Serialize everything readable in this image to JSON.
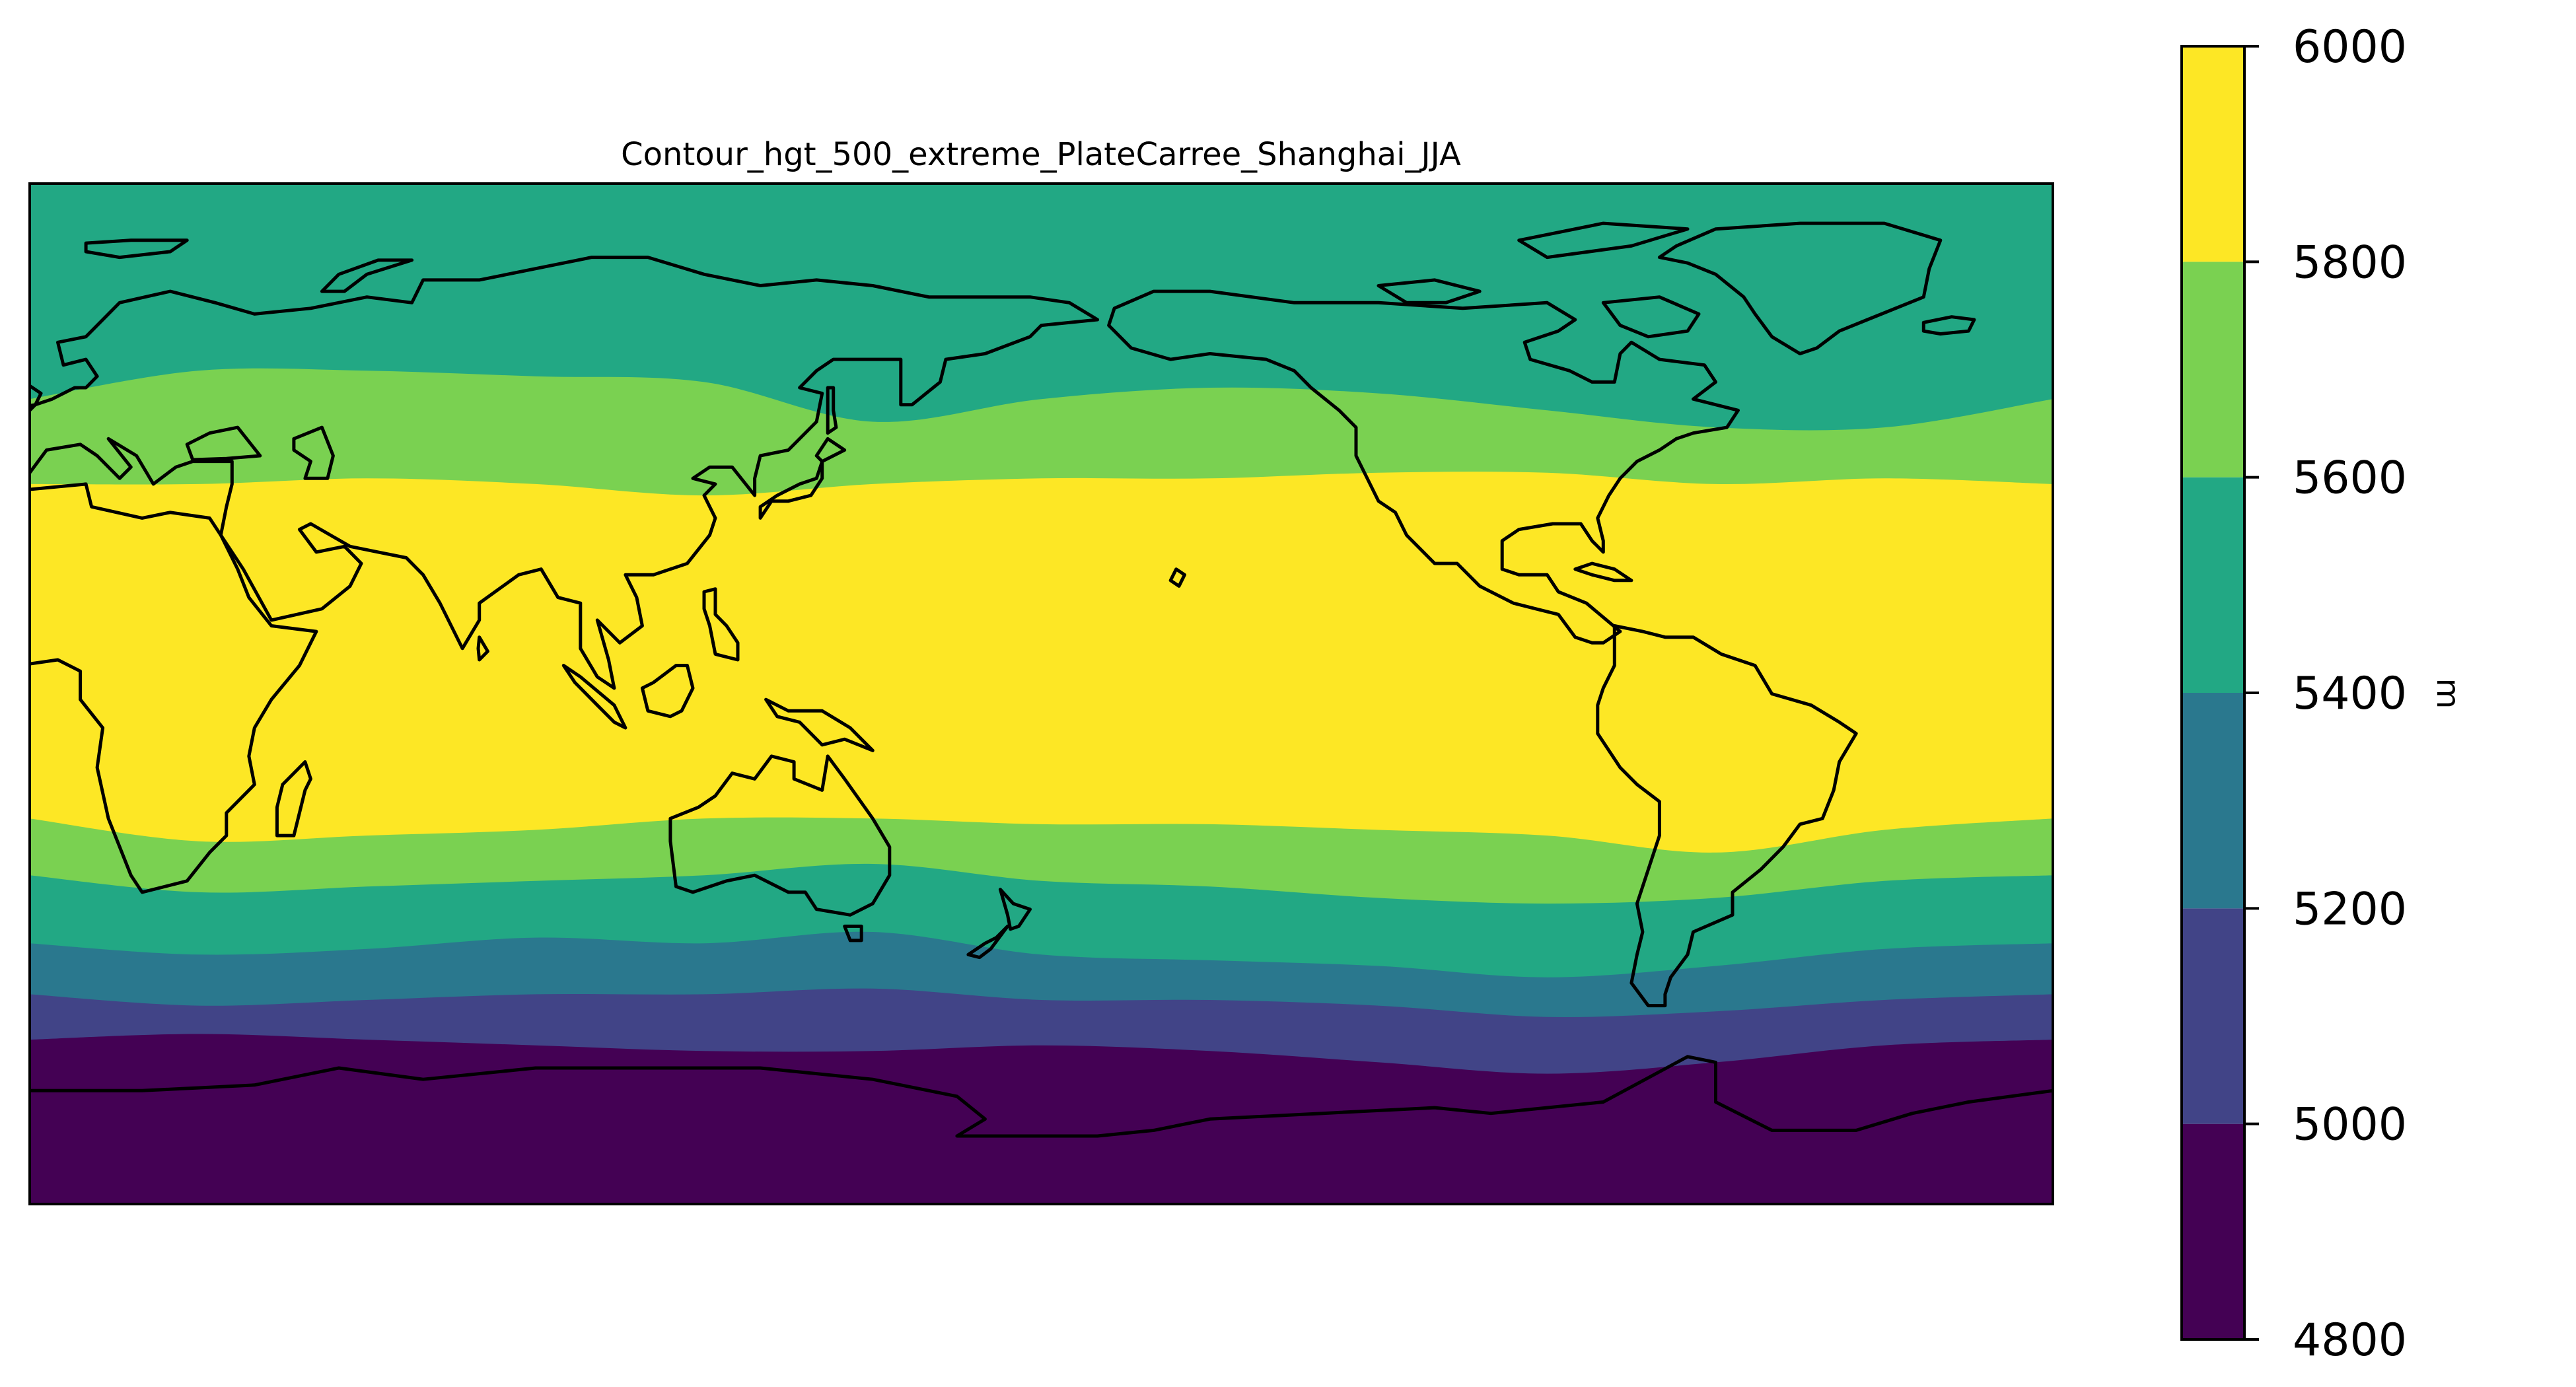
{
  "title": "Contour_hgt_500_extreme_PlateCarree_Shanghai_JJA",
  "colorbar": {
    "unit": "m",
    "ticks": [
      "4800",
      "5000",
      "5200",
      "5400",
      "5600",
      "5800",
      "6000"
    ]
  },
  "chart_data": {
    "type": "heatmap",
    "subtype": "filled-contour-map",
    "variable": "hgt",
    "level_hPa": 500,
    "projection": "PlateCarree",
    "central_longitude": 180,
    "domain": {
      "lon_range": [
        0,
        360
      ],
      "lat_range": [
        -90,
        90
      ]
    },
    "units": "m",
    "levels": [
      4800,
      5000,
      5200,
      5400,
      5600,
      5800,
      6000
    ],
    "colors": [
      "#440154",
      "#414487",
      "#2a788e",
      "#22a884",
      "#7ad151",
      "#fde725"
    ],
    "contour_bands_by_latitude": [
      {
        "range_m": [
          5800,
          6000
        ],
        "lat_south": -22,
        "lat_north": 37
      },
      {
        "range_m": [
          5600,
          5800
        ],
        "lat_south": -34,
        "lat_north": 50
      },
      {
        "range_m": [
          5400,
          5600
        ],
        "lat_south": -45,
        "lat_north": 90
      },
      {
        "range_m": [
          5200,
          5400
        ],
        "lat_south": -53,
        "lat_north": null
      },
      {
        "range_m": [
          5000,
          5200
        ],
        "lat_south": -61,
        "lat_north": null
      },
      {
        "range_m": [
          4800,
          5000
        ],
        "lat_south": -90,
        "lat_north": null
      }
    ],
    "boundaries": [
      {
        "value": 5800,
        "points": [
          [
            0,
            37
          ],
          [
            30,
            37
          ],
          [
            60,
            38
          ],
          [
            90,
            37
          ],
          [
            120,
            35
          ],
          [
            150,
            37
          ],
          [
            180,
            38
          ],
          [
            210,
            38
          ],
          [
            240,
            39
          ],
          [
            270,
            39
          ],
          [
            300,
            37
          ],
          [
            330,
            38
          ],
          [
            360,
            37
          ]
        ]
      },
      {
        "value": 5600,
        "points": [
          [
            0,
            52
          ],
          [
            30,
            57
          ],
          [
            60,
            57
          ],
          [
            90,
            56
          ],
          [
            120,
            55
          ],
          [
            150,
            48
          ],
          [
            180,
            52
          ],
          [
            210,
            54
          ],
          [
            240,
            53
          ],
          [
            270,
            50
          ],
          [
            300,
            47
          ],
          [
            330,
            47
          ],
          [
            360,
            52
          ]
        ]
      },
      {
        "value": 5800,
        "side": "south",
        "points": [
          [
            0,
            -22
          ],
          [
            30,
            -26
          ],
          [
            60,
            -25
          ],
          [
            90,
            -24
          ],
          [
            120,
            -22
          ],
          [
            150,
            -22
          ],
          [
            180,
            -23
          ],
          [
            210,
            -23
          ],
          [
            240,
            -24
          ],
          [
            270,
            -25
          ],
          [
            300,
            -28
          ],
          [
            330,
            -24
          ],
          [
            360,
            -22
          ]
        ]
      },
      {
        "value": 5600,
        "side": "south",
        "points": [
          [
            0,
            -32
          ],
          [
            30,
            -35
          ],
          [
            60,
            -34
          ],
          [
            90,
            -33
          ],
          [
            120,
            -32
          ],
          [
            150,
            -30
          ],
          [
            180,
            -33
          ],
          [
            210,
            -34
          ],
          [
            240,
            -36
          ],
          [
            270,
            -37
          ],
          [
            300,
            -36
          ],
          [
            330,
            -33
          ],
          [
            360,
            -32
          ]
        ]
      },
      {
        "value": 5400,
        "side": "south",
        "points": [
          [
            0,
            -44
          ],
          [
            30,
            -46
          ],
          [
            60,
            -45
          ],
          [
            90,
            -43
          ],
          [
            120,
            -44
          ],
          [
            150,
            -42
          ],
          [
            180,
            -46
          ],
          [
            210,
            -47
          ],
          [
            240,
            -48
          ],
          [
            270,
            -50
          ],
          [
            300,
            -48
          ],
          [
            330,
            -45
          ],
          [
            360,
            -44
          ]
        ]
      },
      {
        "value": 5200,
        "side": "south",
        "points": [
          [
            0,
            -53
          ],
          [
            30,
            -55
          ],
          [
            60,
            -54
          ],
          [
            90,
            -53
          ],
          [
            120,
            -53
          ],
          [
            150,
            -52
          ],
          [
            180,
            -54
          ],
          [
            210,
            -54
          ],
          [
            240,
            -55
          ],
          [
            270,
            -57
          ],
          [
            300,
            -56
          ],
          [
            330,
            -54
          ],
          [
            360,
            -53
          ]
        ]
      },
      {
        "value": 5000,
        "side": "south",
        "points": [
          [
            0,
            -61
          ],
          [
            30,
            -60
          ],
          [
            60,
            -61
          ],
          [
            90,
            -62
          ],
          [
            120,
            -63
          ],
          [
            150,
            -63
          ],
          [
            180,
            -62
          ],
          [
            210,
            -63
          ],
          [
            240,
            -65
          ],
          [
            270,
            -67
          ],
          [
            300,
            -65
          ],
          [
            330,
            -62
          ],
          [
            360,
            -61
          ]
        ]
      }
    ],
    "coastlines": true
  }
}
